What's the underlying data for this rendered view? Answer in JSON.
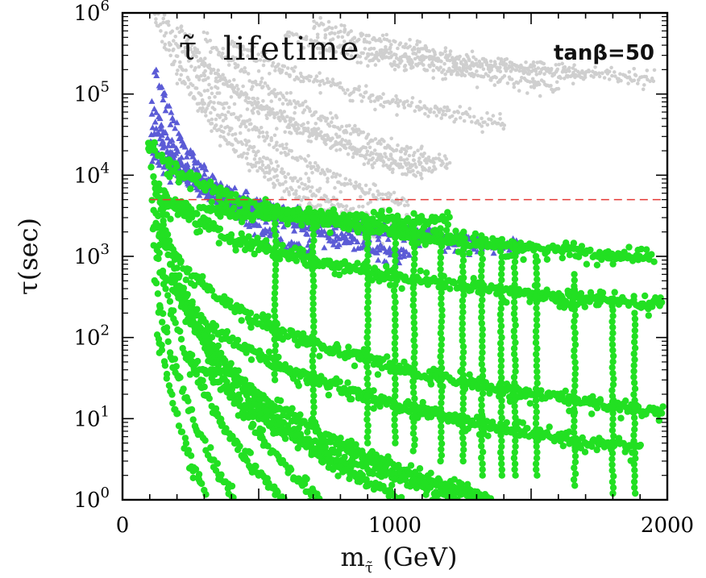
{
  "chart_data": {
    "type": "scatter",
    "title": "τ̃ lifetime",
    "title_symbol": "τ̃",
    "title_word": "lifetime",
    "annotation": "tanβ=50",
    "xlabel": "m",
    "xlabel_sub": "τ̃",
    "xlabel_unit": "(GeV)",
    "ylabel": "τ(sec)",
    "xlim": [
      0,
      2000
    ],
    "ylim": [
      1,
      1000000
    ],
    "y_scale": "log",
    "x_ticks": [
      "0",
      "1000",
      "2000"
    ],
    "y_ticks": [
      {
        "base": "10",
        "exp": "0"
      },
      {
        "base": "10",
        "exp": "1"
      },
      {
        "base": "10",
        "exp": "2"
      },
      {
        "base": "10",
        "exp": "3"
      },
      {
        "base": "10",
        "exp": "4"
      },
      {
        "base": "10",
        "exp": "5"
      },
      {
        "base": "10",
        "exp": "6"
      }
    ],
    "reference_line": {
      "y": 5000,
      "style": "dashed",
      "color": "#e53935"
    },
    "colors": {
      "excluded_light": "#cfcfcf",
      "excluded_blue": "#5b5bd6",
      "allowed_green": "#22e022"
    },
    "series": [
      {
        "style": "light-gray-dots",
        "color": "#cfcfcf",
        "bands": [
          {
            "A": 2200000,
            "p": 3.0,
            "xmin": 120,
            "xmax": 1000
          },
          {
            "A": 1500000,
            "p": 3.0,
            "xmin": 120,
            "xmax": 950
          },
          {
            "A": 3000000,
            "p": 2.8,
            "xmin": 150,
            "xmax": 1050
          },
          {
            "A": 4000000,
            "p": 2.5,
            "xmin": 200,
            "xmax": 1100
          },
          {
            "A": 2500000,
            "p": 2.2,
            "xmin": 250,
            "xmax": 1150
          },
          {
            "A": 9000000,
            "p": 2.6,
            "xmin": 300,
            "xmax": 1200
          },
          {
            "A": 5000000,
            "p": 1.8,
            "xmin": 400,
            "xmax": 1400
          },
          {
            "A": 8000000,
            "p": 1.5,
            "xmin": 600,
            "xmax": 1600
          },
          {
            "A": 20000000,
            "p": 1.7,
            "xmin": 700,
            "xmax": 1700
          },
          {
            "A": 3000000,
            "p": 1.0,
            "xmin": 900,
            "xmax": 1950
          }
        ]
      },
      {
        "style": "blue-triangles",
        "color": "#5b5bd6",
        "bands": [
          {
            "A": 28000,
            "p": 1.15,
            "xmin": 100,
            "xmax": 1450
          },
          {
            "A": 20000,
            "p": 1.0,
            "xmin": 110,
            "xmax": 1300
          },
          {
            "A": 45000,
            "p": 1.6,
            "xmin": 110,
            "xmax": 1050
          },
          {
            "A": 90000,
            "p": 2.3,
            "xmin": 110,
            "xmax": 700
          },
          {
            "A": 350000,
            "p": 3.2,
            "xmin": 120,
            "xmax": 420
          }
        ]
      },
      {
        "style": "green-dots",
        "color": "#22e022",
        "bands": [
          {
            "A": 25000,
            "p": 1.1,
            "xmin": 100,
            "xmax": 1950
          },
          {
            "A": 9000,
            "p": 1.2,
            "xmin": 120,
            "xmax": 1980
          },
          {
            "A": 3500,
            "p": 1.9,
            "xmin": 120,
            "xmax": 1980
          },
          {
            "A": 1500,
            "p": 2.0,
            "xmin": 150,
            "xmax": 1900
          },
          {
            "A": 7000,
            "p": 3.8,
            "xmin": 110,
            "xmax": 1600
          },
          {
            "A": 3000,
            "p": 4.5,
            "xmin": 110,
            "xmax": 1200
          },
          {
            "A": 1200,
            "p": 5.0,
            "xmin": 120,
            "xmax": 1000
          },
          {
            "A": 500,
            "p": 5.5,
            "xmin": 130,
            "xmax": 850
          },
          {
            "A": 20000,
            "p": 5.0,
            "xmin": 100,
            "xmax": 900
          },
          {
            "A": 2500,
            "p": 3.0,
            "xmin": 200,
            "xmax": 1800
          },
          {
            "A": 600,
            "p": 2.5,
            "xmin": 250,
            "xmax": 1900
          },
          {
            "A": 4500,
            "p": 0.2,
            "xmin": 150,
            "xmax": 1200
          }
        ],
        "vertical_columns": [
          {
            "x": 560,
            "ymin": 30,
            "ymax": 3500
          },
          {
            "x": 700,
            "ymin": 10,
            "ymax": 3000
          },
          {
            "x": 900,
            "ymin": 5,
            "ymax": 2800
          },
          {
            "x": 1000,
            "ymin": 5,
            "ymax": 2800
          },
          {
            "x": 1070,
            "ymin": 4,
            "ymax": 2500
          },
          {
            "x": 1170,
            "ymin": 3,
            "ymax": 2200
          },
          {
            "x": 1250,
            "ymin": 3,
            "ymax": 2000
          },
          {
            "x": 1320,
            "ymin": 2,
            "ymax": 1800
          },
          {
            "x": 1390,
            "ymin": 2,
            "ymax": 1600
          },
          {
            "x": 1440,
            "ymin": 2,
            "ymax": 1400
          },
          {
            "x": 1520,
            "ymin": 2,
            "ymax": 1000
          },
          {
            "x": 1660,
            "ymin": 1.5,
            "ymax": 600
          },
          {
            "x": 1800,
            "ymin": 1.2,
            "ymax": 300
          },
          {
            "x": 1880,
            "ymin": 1.2,
            "ymax": 200
          }
        ]
      }
    ]
  }
}
